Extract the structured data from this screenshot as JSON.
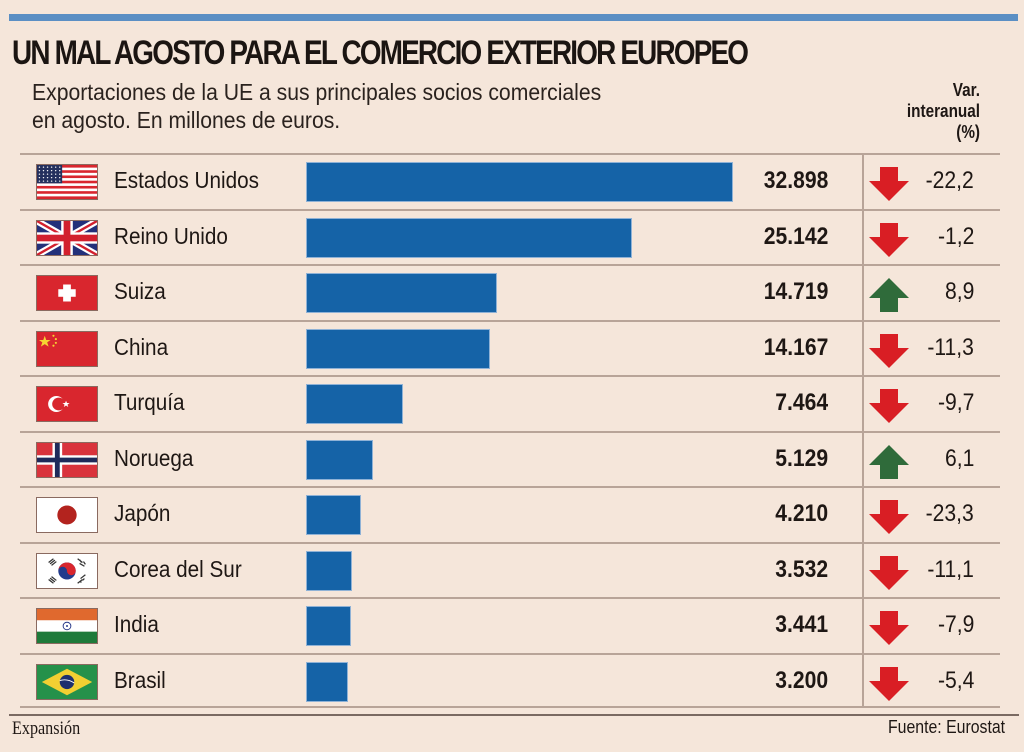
{
  "header": {
    "title": "UN MAL AGOSTO PARA EL COMERCIO EXTERIOR EUROPEO",
    "subtitle": "Exportaciones de la UE a sus principales socios comerciales\nen agosto. En millones de euros.",
    "change_column_header": "Var.\ninteranual\n(%)"
  },
  "colors": {
    "accent_bar": "#5b8fc4",
    "bar": "#1563a7",
    "down_arrow": "#d91e24",
    "up_arrow": "#2f6b3a",
    "background": "#f5e6da"
  },
  "chart_data": {
    "type": "bar",
    "orientation": "horizontal",
    "title": "UN MAL AGOSTO PARA EL COMERCIO EXTERIOR EUROPEO",
    "subtitle": "Exportaciones de la UE a sus principales socios comerciales en agosto. En millones de euros.",
    "xlabel": "",
    "ylabel": "",
    "xlim": [
      0,
      32898
    ],
    "grid": false,
    "categories": [
      "Estados Unidos",
      "Reino Unido",
      "Suiza",
      "China",
      "Turquía",
      "Noruega",
      "Japón",
      "Corea del Sur",
      "India",
      "Brasil"
    ],
    "series": [
      {
        "name": "Exportaciones (millones de euros)",
        "values": [
          32898,
          25142,
          14719,
          14167,
          7464,
          5129,
          4210,
          3532,
          3441,
          3200
        ]
      },
      {
        "name": "Var. interanual (%)",
        "values": [
          -22.2,
          -1.2,
          8.9,
          -11.3,
          -9.7,
          6.1,
          -23.3,
          -11.1,
          -7.9,
          -5.4
        ]
      }
    ],
    "rows": [
      {
        "country": "Estados Unidos",
        "flag": "usa-flag",
        "value": 32898,
        "value_label": "32.898",
        "change": -22.2,
        "change_label": "-22,2",
        "direction": "down"
      },
      {
        "country": "Reino Unido",
        "flag": "uk-flag",
        "value": 25142,
        "value_label": "25.142",
        "change": -1.2,
        "change_label": "-1,2",
        "direction": "down"
      },
      {
        "country": "Suiza",
        "flag": "switzerland-flag",
        "value": 14719,
        "value_label": "14.719",
        "change": 8.9,
        "change_label": "8,9",
        "direction": "up"
      },
      {
        "country": "China",
        "flag": "china-flag",
        "value": 14167,
        "value_label": "14.167",
        "change": -11.3,
        "change_label": "-11,3",
        "direction": "down"
      },
      {
        "country": "Turquía",
        "flag": "turkey-flag",
        "value": 7464,
        "value_label": "7.464",
        "change": -9.7,
        "change_label": "-9,7",
        "direction": "down"
      },
      {
        "country": "Noruega",
        "flag": "norway-flag",
        "value": 5129,
        "value_label": "5.129",
        "change": 6.1,
        "change_label": "6,1",
        "direction": "up"
      },
      {
        "country": "Japón",
        "flag": "japan-flag",
        "value": 4210,
        "value_label": "4.210",
        "change": -23.3,
        "change_label": "-23,3",
        "direction": "down"
      },
      {
        "country": "Corea del Sur",
        "flag": "south-korea-flag",
        "value": 3532,
        "value_label": "3.532",
        "change": -11.1,
        "change_label": "-11,1",
        "direction": "down"
      },
      {
        "country": "India",
        "flag": "india-flag",
        "value": 3441,
        "value_label": "3.441",
        "change": -7.9,
        "change_label": "-7,9",
        "direction": "down"
      },
      {
        "country": "Brasil",
        "flag": "brazil-flag",
        "value": 3200,
        "value_label": "3.200",
        "change": -5.4,
        "change_label": "-5,4",
        "direction": "down"
      }
    ]
  },
  "footer": {
    "brand": "Expansión",
    "source": "Fuente: Eurostat"
  }
}
